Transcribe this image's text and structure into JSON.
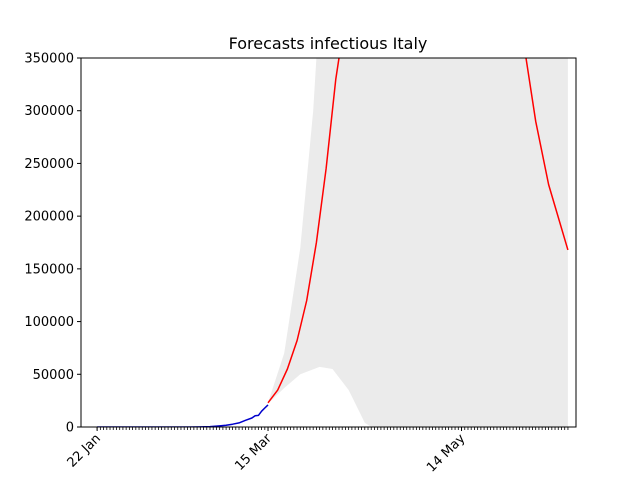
{
  "chart_data": {
    "type": "line",
    "title": "Forecasts infectious Italy",
    "xlabel": "",
    "ylabel": "",
    "x_start": "2020-01-22",
    "x_end": "2020-06-16",
    "x_tick_labels": [
      {
        "date": "2020-01-22",
        "label": "22 Jan"
      },
      {
        "date": "2020-03-15",
        "label": "15 Mar"
      },
      {
        "date": "2020-05-14",
        "label": "14 May"
      }
    ],
    "ylim": [
      0,
      350000
    ],
    "y_ticks": [
      0,
      50000,
      100000,
      150000,
      200000,
      250000,
      300000,
      350000
    ],
    "grid": false,
    "legend": "none",
    "series": [
      {
        "color": "#0000cc",
        "points": [
          {
            "x": "2020-01-22",
            "y": 0
          },
          {
            "x": "2020-02-01",
            "y": 0
          },
          {
            "x": "2020-02-10",
            "y": 0
          },
          {
            "x": "2020-02-20",
            "y": 3
          },
          {
            "x": "2020-02-23",
            "y": 130
          },
          {
            "x": "2020-02-26",
            "y": 400
          },
          {
            "x": "2020-02-29",
            "y": 1000
          },
          {
            "x": "2020-03-02",
            "y": 1600
          },
          {
            "x": "2020-03-04",
            "y": 2700
          },
          {
            "x": "2020-03-06",
            "y": 3900
          },
          {
            "x": "2020-03-08",
            "y": 6400
          },
          {
            "x": "2020-03-10",
            "y": 8500
          },
          {
            "x": "2020-03-11",
            "y": 10600
          },
          {
            "x": "2020-03-12",
            "y": 11000
          },
          {
            "x": "2020-03-13",
            "y": 15000
          },
          {
            "x": "2020-03-14",
            "y": 18000
          },
          {
            "x": "2020-03-15",
            "y": 21000
          }
        ]
      },
      {
        "color": "#ff0000",
        "points": [
          {
            "x": "2020-03-15",
            "y": 23000
          },
          {
            "x": "2020-03-18",
            "y": 35000
          },
          {
            "x": "2020-03-21",
            "y": 55000
          },
          {
            "x": "2020-03-24",
            "y": 82000
          },
          {
            "x": "2020-03-27",
            "y": 120000
          },
          {
            "x": "2020-03-30",
            "y": 175000
          },
          {
            "x": "2020-04-02",
            "y": 245000
          },
          {
            "x": "2020-04-05",
            "y": 330000
          },
          {
            "x": "2020-04-06",
            "y": 350000
          }
        ]
      },
      {
        "color": "#ff0000",
        "points": [
          {
            "x": "2020-06-03",
            "y": 350000
          },
          {
            "x": "2020-06-06",
            "y": 290000
          },
          {
            "x": "2020-06-10",
            "y": 230000
          },
          {
            "x": "2020-06-16",
            "y": 168000
          }
        ]
      }
    ],
    "band": {
      "color": "#ebebeb",
      "upper": [
        {
          "x": "2020-03-15",
          "y": 23000
        },
        {
          "x": "2020-03-20",
          "y": 70000
        },
        {
          "x": "2020-03-25",
          "y": 170000
        },
        {
          "x": "2020-03-29",
          "y": 300000
        },
        {
          "x": "2020-03-30",
          "y": 350000
        },
        {
          "x": "2020-06-16",
          "y": 350000
        }
      ],
      "lower": [
        {
          "x": "2020-03-15",
          "y": 22000
        },
        {
          "x": "2020-03-20",
          "y": 37000
        },
        {
          "x": "2020-03-25",
          "y": 50000
        },
        {
          "x": "2020-03-31",
          "y": 57000
        },
        {
          "x": "2020-04-04",
          "y": 55000
        },
        {
          "x": "2020-04-09",
          "y": 35000
        },
        {
          "x": "2020-04-14",
          "y": 4000
        },
        {
          "x": "2020-04-16",
          "y": 0
        },
        {
          "x": "2020-06-16",
          "y": 0
        }
      ]
    }
  }
}
